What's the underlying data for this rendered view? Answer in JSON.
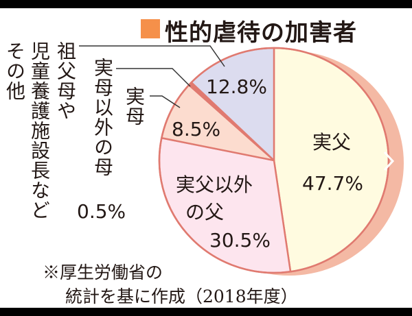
{
  "title": "性的虐待の加害者",
  "colors": {
    "title_square": "#f5904a",
    "border": "#e07a70",
    "shadow": "#f4b9a4"
  },
  "chart_data": {
    "type": "pie",
    "title": "性的虐待の加害者",
    "start": "12 o'clock, clockwise",
    "slices": [
      {
        "label": "実父",
        "value": 47.7,
        "value_label": "47.7%",
        "color": "#fffbe0"
      },
      {
        "label": "実父以外の父",
        "label_lines": [
          "実父以外",
          "の父"
        ],
        "value": 30.5,
        "value_label": "30.5%",
        "color": "#fde5ee"
      },
      {
        "label": "実母",
        "value": 8.5,
        "value_label": "8.5%",
        "color": "#fcdccf"
      },
      {
        "label": "実母以外の母",
        "value": 0.5,
        "value_label": "0.5%",
        "color": "#e07a70"
      },
      {
        "label_lines": [
          "祖父母や",
          "児童養護施設長など",
          "その他"
        ],
        "value": 12.8,
        "value_label": "12.8%",
        "color": "#dcdcef"
      }
    ]
  },
  "footnote": {
    "line1": "※厚生労働省の",
    "line2": "統計を基に作成（2018年度）"
  }
}
